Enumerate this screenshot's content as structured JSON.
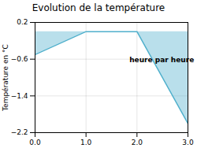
{
  "chart_data": {
    "type": "area",
    "title": "Evolution de la température",
    "ylabel": "Température en °C",
    "annotations": [
      {
        "text": "heure par heure",
        "x": 1.85,
        "y": -0.55
      }
    ],
    "x": [
      0,
      1,
      2,
      3
    ],
    "values": [
      -0.5,
      0.0,
      0.0,
      -2.0
    ],
    "color": "#50b0cc",
    "xlim": [
      0,
      3
    ],
    "ylim": [
      -2.2,
      0.2
    ],
    "xticks": [
      0,
      1,
      2,
      3
    ],
    "yticks": [
      0.2,
      -0.6,
      -1.4,
      -2.2
    ],
    "grid": true
  }
}
